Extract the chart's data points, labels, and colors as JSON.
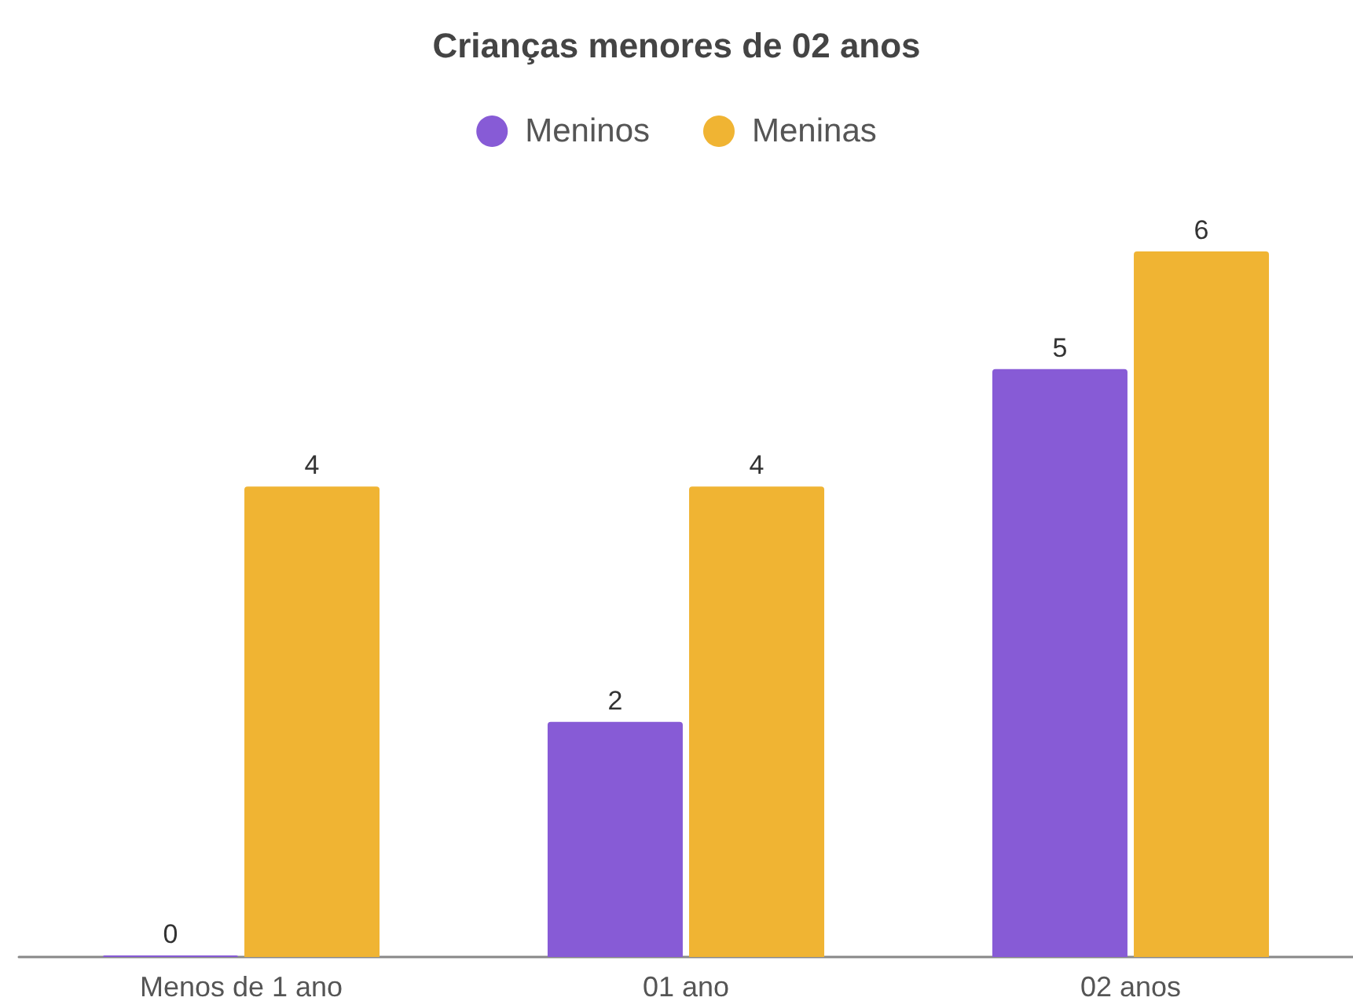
{
  "chart_data": {
    "type": "bar",
    "title": "Crianças menores de 02 anos",
    "categories": [
      "Menos de 1 ano",
      "01 ano",
      "02 anos"
    ],
    "series": [
      {
        "name": "Meninos",
        "color": "#875bd6",
        "values": [
          0,
          2,
          5
        ]
      },
      {
        "name": "Meninas",
        "color": "#f0b433",
        "values": [
          4,
          4,
          6
        ]
      }
    ],
    "data_labels": true,
    "legend": "top",
    "tick_labels": "x"
  }
}
